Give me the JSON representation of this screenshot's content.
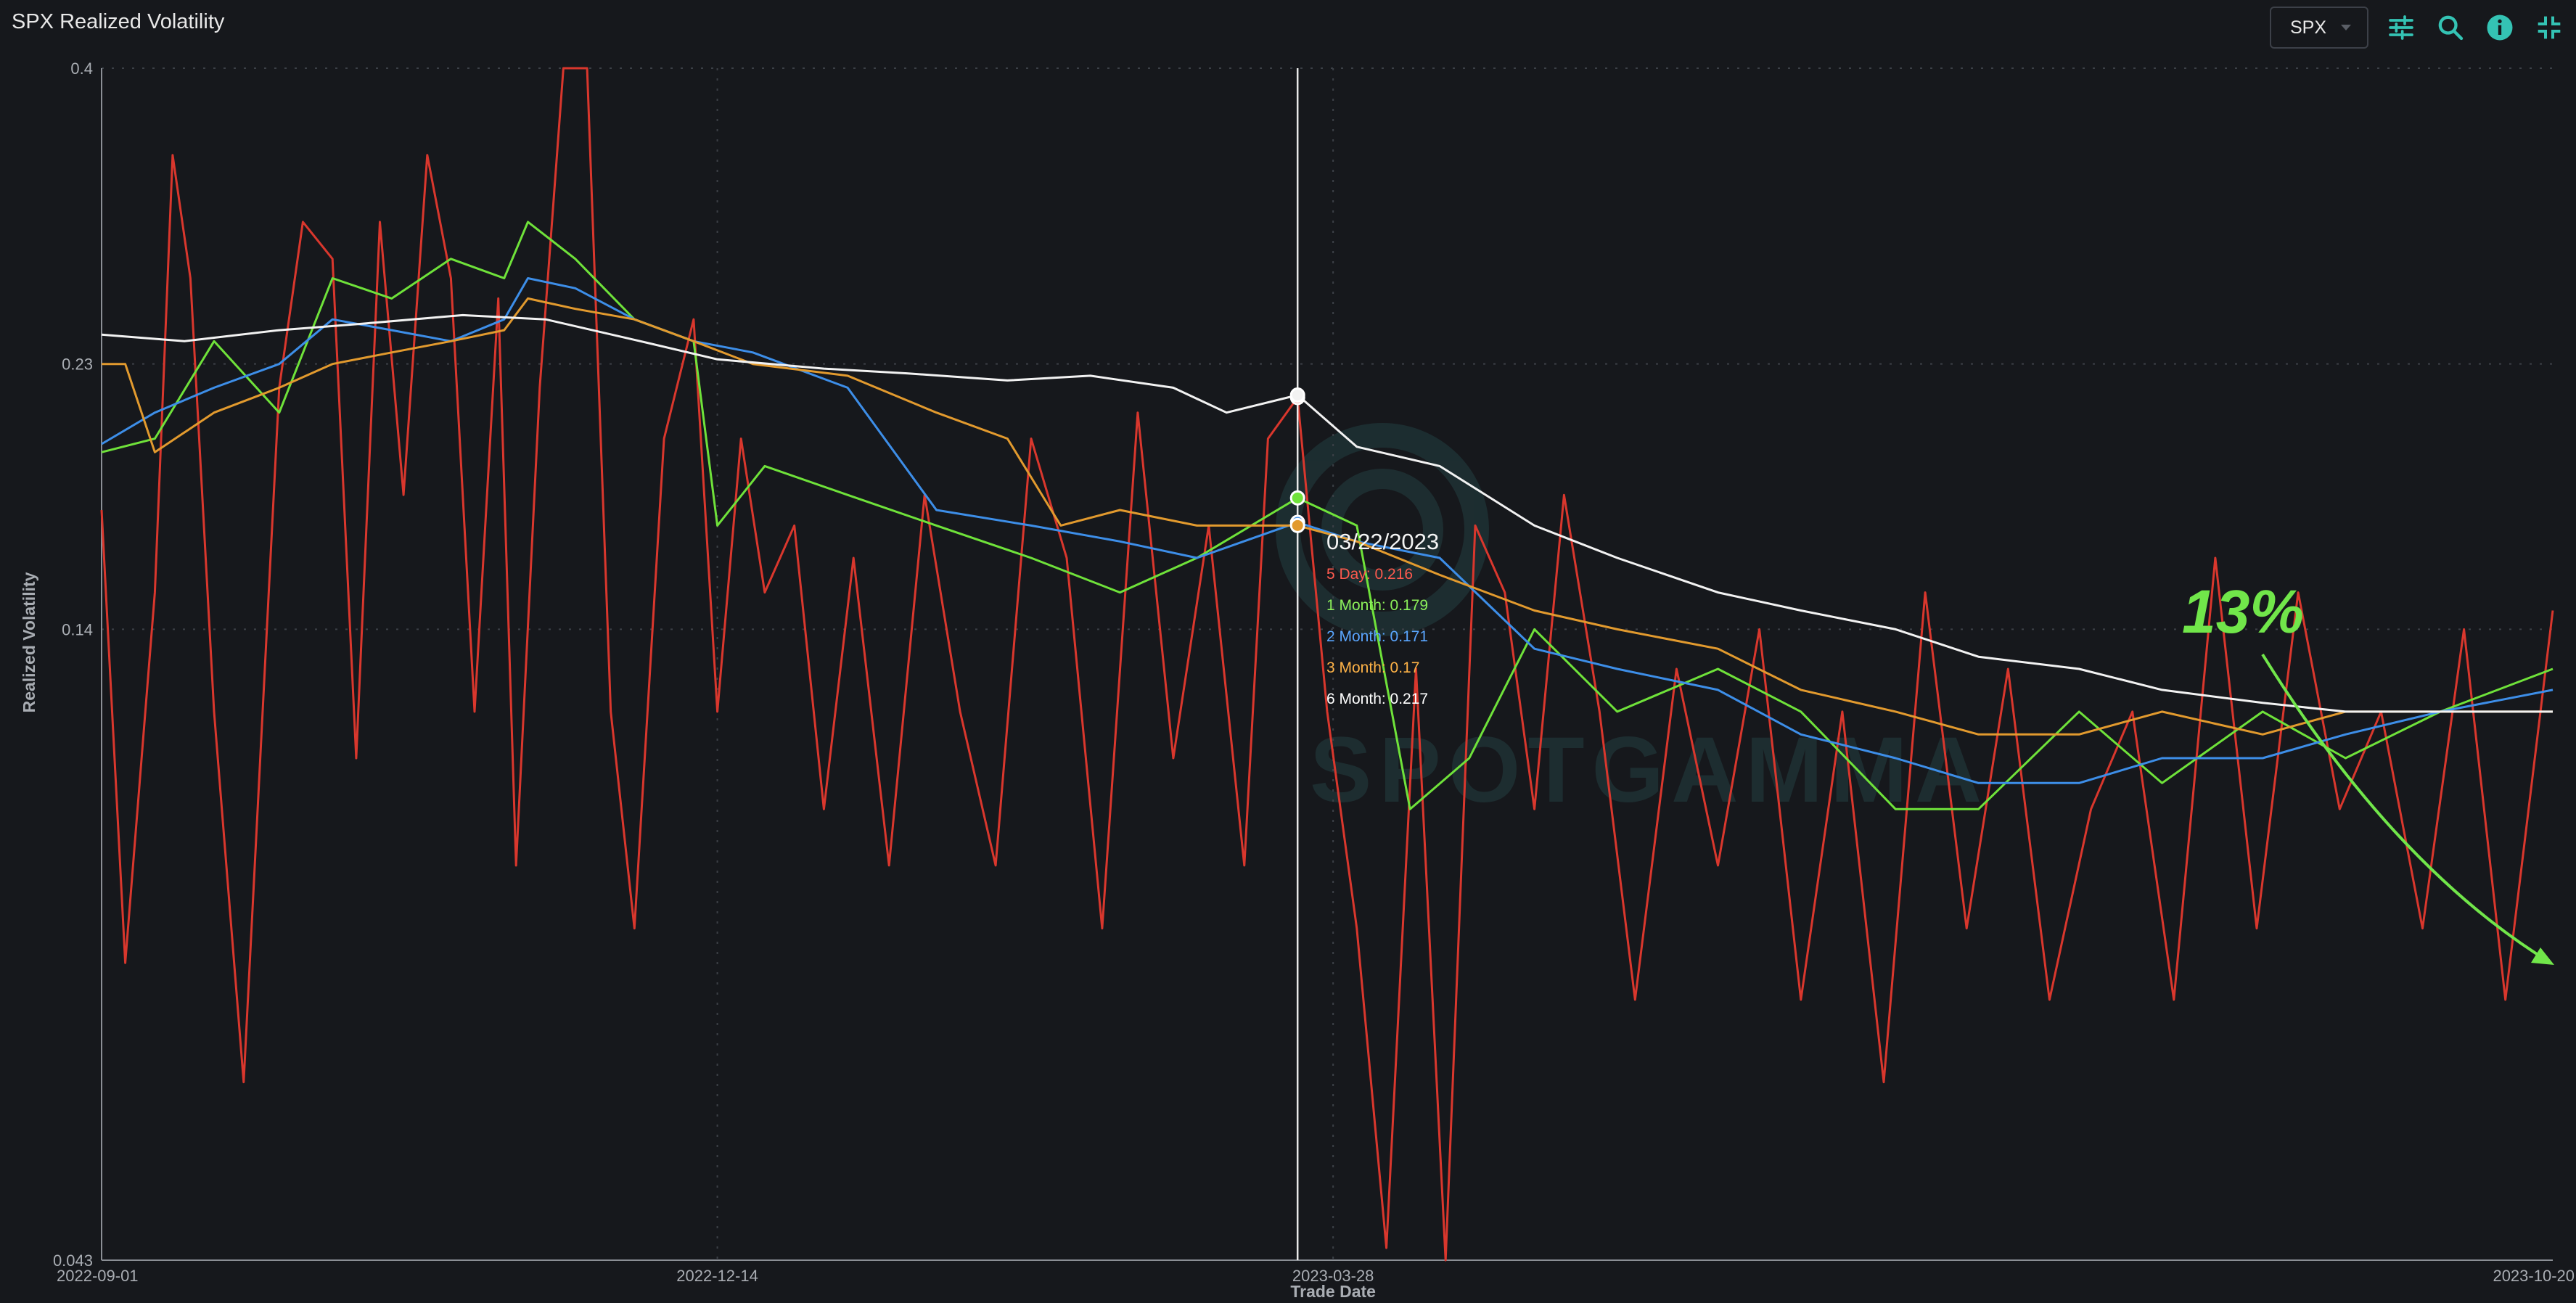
{
  "title": "SPX Realized Volatility",
  "ticker_select": {
    "value": "SPX"
  },
  "icons": [
    "sliders-icon",
    "search-icon",
    "info-icon",
    "collapse-icon"
  ],
  "colors": {
    "background": "#16181c",
    "accent": "#34c3b4",
    "five_day": "#d9372d",
    "one_month": "#6fe23a",
    "two_month": "#3d8ee8",
    "three_month": "#e29a2e",
    "six_month": "#f2f2f2",
    "annotation": "#71e64a"
  },
  "watermark": "SPOTGAMMA",
  "tooltip": {
    "date": "03/22/2023",
    "rows": [
      {
        "label": "5 Day: 0.216",
        "color": "#ff5a4e"
      },
      {
        "label": "1 Month: 0.179",
        "color": "#8cf05a"
      },
      {
        "label": "2 Month: 0.171",
        "color": "#5aa6ff"
      },
      {
        "label": "3 Month: 0.17",
        "color": "#ffb347"
      },
      {
        "label": "6 Month: 0.217",
        "color": "#ffffff"
      }
    ]
  },
  "annotation": "13%",
  "chart_data": {
    "type": "line",
    "xlabel": "Trade Date",
    "ylabel": "Realized Volatility",
    "y_scale": "log",
    "ylim": [
      0.043,
      0.4
    ],
    "y_ticks": [
      "0.4",
      "0.23",
      "0.14",
      "0.043"
    ],
    "x_ticks": [
      "2022-09-01",
      "2022-12-14",
      "2023-03-28",
      "2023-10-20"
    ],
    "xlim": [
      "2022-09-01",
      "2023-10-20"
    ],
    "cursor_date": "2023-03-22",
    "series": [
      {
        "name": "5 Day",
        "color": "#d9372d",
        "x": [
          "2022-09-01",
          "2022-09-05",
          "2022-09-10",
          "2022-09-13",
          "2022-09-16",
          "2022-09-20",
          "2022-09-25",
          "2022-10-01",
          "2022-10-05",
          "2022-10-10",
          "2022-10-14",
          "2022-10-18",
          "2022-10-22",
          "2022-10-26",
          "2022-10-30",
          "2022-11-03",
          "2022-11-07",
          "2022-11-10",
          "2022-11-14",
          "2022-11-18",
          "2022-11-22",
          "2022-11-26",
          "2022-11-30",
          "2022-12-05",
          "2022-12-10",
          "2022-12-14",
          "2022-12-18",
          "2022-12-22",
          "2022-12-27",
          "2023-01-01",
          "2023-01-06",
          "2023-01-12",
          "2023-01-18",
          "2023-01-24",
          "2023-01-30",
          "2023-02-05",
          "2023-02-11",
          "2023-02-17",
          "2023-02-23",
          "2023-03-01",
          "2023-03-07",
          "2023-03-13",
          "2023-03-17",
          "2023-03-22",
          "2023-03-27",
          "2023-04-01",
          "2023-04-06",
          "2023-04-11",
          "2023-04-16",
          "2023-04-21",
          "2023-04-26",
          "2023-05-01",
          "2023-05-06",
          "2023-05-12",
          "2023-05-18",
          "2023-05-25",
          "2023-06-01",
          "2023-06-08",
          "2023-06-15",
          "2023-06-22",
          "2023-06-29",
          "2023-07-06",
          "2023-07-13",
          "2023-07-20",
          "2023-07-27",
          "2023-08-03",
          "2023-08-10",
          "2023-08-17",
          "2023-08-24",
          "2023-08-31",
          "2023-09-07",
          "2023-09-14",
          "2023-09-21",
          "2023-09-28",
          "2023-10-05",
          "2023-10-12",
          "2023-10-20"
        ],
        "y": [
          0.175,
          0.075,
          0.15,
          0.34,
          0.27,
          0.12,
          0.06,
          0.22,
          0.3,
          0.28,
          0.11,
          0.3,
          0.18,
          0.34,
          0.27,
          0.12,
          0.26,
          0.09,
          0.22,
          0.4,
          0.4,
          0.12,
          0.08,
          0.2,
          0.25,
          0.12,
          0.2,
          0.15,
          0.17,
          0.1,
          0.16,
          0.09,
          0.18,
          0.12,
          0.09,
          0.2,
          0.16,
          0.08,
          0.21,
          0.11,
          0.17,
          0.09,
          0.2,
          0.216,
          0.12,
          0.08,
          0.044,
          0.13,
          0.043,
          0.17,
          0.15,
          0.1,
          0.18,
          0.12,
          0.07,
          0.13,
          0.09,
          0.14,
          0.07,
          0.12,
          0.06,
          0.15,
          0.08,
          0.13,
          0.07,
          0.1,
          0.12,
          0.07,
          0.16,
          0.08,
          0.15,
          0.1,
          0.12,
          0.08,
          0.14,
          0.07,
          0.145
        ]
      },
      {
        "name": "1 Month",
        "color": "#6fe23a",
        "x": [
          "2022-09-01",
          "2022-09-10",
          "2022-09-20",
          "2022-10-01",
          "2022-10-10",
          "2022-10-20",
          "2022-10-30",
          "2022-11-08",
          "2022-11-12",
          "2022-11-20",
          "2022-11-30",
          "2022-12-10",
          "2022-12-14",
          "2022-12-22",
          "2023-01-05",
          "2023-01-20",
          "2023-02-05",
          "2023-02-20",
          "2023-03-05",
          "2023-03-22",
          "2023-04-01",
          "2023-04-10",
          "2023-04-20",
          "2023-05-01",
          "2023-05-15",
          "2023-06-01",
          "2023-06-15",
          "2023-07-01",
          "2023-07-15",
          "2023-08-01",
          "2023-08-15",
          "2023-09-01",
          "2023-09-15",
          "2023-10-01",
          "2023-10-20"
        ],
        "y": [
          0.195,
          0.2,
          0.24,
          0.21,
          0.27,
          0.26,
          0.28,
          0.27,
          0.3,
          0.28,
          0.25,
          0.24,
          0.17,
          0.19,
          0.18,
          0.17,
          0.16,
          0.15,
          0.16,
          0.179,
          0.17,
          0.1,
          0.11,
          0.14,
          0.12,
          0.13,
          0.12,
          0.1,
          0.1,
          0.12,
          0.105,
          0.12,
          0.11,
          0.12,
          0.13
        ]
      },
      {
        "name": "2 Month",
        "color": "#3d8ee8",
        "x": [
          "2022-09-01",
          "2022-09-10",
          "2022-09-20",
          "2022-10-01",
          "2022-10-10",
          "2022-10-20",
          "2022-10-30",
          "2022-11-08",
          "2022-11-12",
          "2022-11-20",
          "2022-11-30",
          "2022-12-10",
          "2022-12-20",
          "2023-01-05",
          "2023-01-20",
          "2023-02-05",
          "2023-02-20",
          "2023-03-05",
          "2023-03-22",
          "2023-04-01",
          "2023-04-15",
          "2023-05-01",
          "2023-05-15",
          "2023-06-01",
          "2023-06-15",
          "2023-07-01",
          "2023-07-15",
          "2023-08-01",
          "2023-08-15",
          "2023-09-01",
          "2023-09-15",
          "2023-10-01",
          "2023-10-20"
        ],
        "y": [
          0.198,
          0.21,
          0.22,
          0.23,
          0.25,
          0.245,
          0.24,
          0.25,
          0.27,
          0.265,
          0.25,
          0.24,
          0.235,
          0.22,
          0.175,
          0.17,
          0.165,
          0.16,
          0.171,
          0.165,
          0.16,
          0.135,
          0.13,
          0.125,
          0.115,
          0.11,
          0.105,
          0.105,
          0.11,
          0.11,
          0.115,
          0.12,
          0.125
        ]
      },
      {
        "name": "3 Month",
        "color": "#e29a2e",
        "x": [
          "2022-09-01",
          "2022-09-05",
          "2022-09-10",
          "2022-09-20",
          "2022-10-01",
          "2022-10-10",
          "2022-10-20",
          "2022-10-30",
          "2022-11-08",
          "2022-11-12",
          "2022-11-20",
          "2022-11-30",
          "2022-12-10",
          "2022-12-20",
          "2023-01-05",
          "2023-01-20",
          "2023-02-01",
          "2023-02-10",
          "2023-02-20",
          "2023-03-05",
          "2023-03-22",
          "2023-04-01",
          "2023-04-15",
          "2023-05-01",
          "2023-05-15",
          "2023-06-01",
          "2023-06-15",
          "2023-07-01",
          "2023-07-15",
          "2023-08-01",
          "2023-08-15",
          "2023-09-01",
          "2023-09-15",
          "2023-10-01",
          "2023-10-20"
        ],
        "y": [
          0.23,
          0.23,
          0.195,
          0.21,
          0.22,
          0.23,
          0.235,
          0.24,
          0.245,
          0.26,
          0.255,
          0.25,
          0.24,
          0.23,
          0.225,
          0.21,
          0.2,
          0.17,
          0.175,
          0.17,
          0.17,
          0.165,
          0.155,
          0.145,
          0.14,
          0.135,
          0.125,
          0.12,
          0.115,
          0.115,
          0.12,
          0.115,
          0.12,
          0.12,
          0.12
        ]
      },
      {
        "name": "6 Month",
        "color": "#f2f2f2",
        "x": [
          "2022-09-01",
          "2022-09-15",
          "2022-10-01",
          "2022-10-15",
          "2022-11-01",
          "2022-11-15",
          "2022-12-01",
          "2022-12-14",
          "2023-01-01",
          "2023-01-15",
          "2023-02-01",
          "2023-02-15",
          "2023-03-01",
          "2023-03-10",
          "2023-03-22",
          "2023-04-01",
          "2023-04-15",
          "2023-05-01",
          "2023-05-15",
          "2023-06-01",
          "2023-06-15",
          "2023-07-01",
          "2023-07-15",
          "2023-08-01",
          "2023-08-15",
          "2023-09-01",
          "2023-09-15",
          "2023-10-01",
          "2023-10-20"
        ],
        "y": [
          0.243,
          0.24,
          0.245,
          0.248,
          0.252,
          0.25,
          0.24,
          0.232,
          0.228,
          0.226,
          0.223,
          0.225,
          0.22,
          0.21,
          0.217,
          0.197,
          0.19,
          0.17,
          0.16,
          0.15,
          0.145,
          0.14,
          0.133,
          0.13,
          0.125,
          0.122,
          0.12,
          0.12,
          0.12
        ]
      }
    ]
  }
}
